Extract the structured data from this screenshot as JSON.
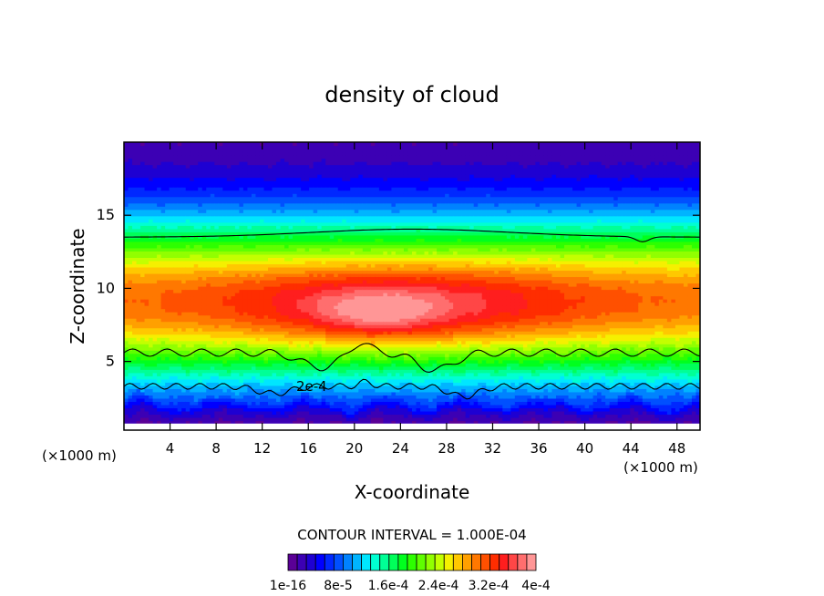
{
  "chart_data": {
    "type": "heatmap",
    "title": "density of cloud",
    "xlabel": "X-coordinate",
    "ylabel": "Z-coordinate",
    "x_unit_left": "(×1000 m)",
    "x_unit_right": "(×1000 m)",
    "xlim": [
      0,
      50
    ],
    "ylim": [
      0.3,
      20
    ],
    "x_ticks": [
      4,
      8,
      12,
      16,
      20,
      24,
      28,
      32,
      36,
      40,
      44,
      48
    ],
    "y_ticks": [
      5,
      10,
      15
    ],
    "contour_interval_text": "CONTOUR INTERVAL = 1.000E-04",
    "contour_line_label": "2e-4",
    "colorbar": {
      "colors": [
        "#5a0096",
        "#3c00b4",
        "#1e00d2",
        "#0000ff",
        "#0028ff",
        "#0050ff",
        "#0082ff",
        "#00b4ff",
        "#00e6ff",
        "#00ffd2",
        "#00ff96",
        "#00ff5a",
        "#00ff1e",
        "#2dff00",
        "#5fff00",
        "#91ff00",
        "#c3ff00",
        "#f5f000",
        "#ffc800",
        "#ffa000",
        "#ff7800",
        "#ff5000",
        "#ff2d00",
        "#ff1e1e",
        "#ff4646",
        "#ff6e6e",
        "#ff9696"
      ],
      "labels": [
        "1e-16",
        "8e-5",
        "1.6e-4",
        "2.4e-4",
        "3.2e-4",
        "4e-4"
      ]
    },
    "field_summary": {
      "max_value_approx": "4e-4",
      "max_location_x": [
        17,
        27
      ],
      "max_location_z": [
        6.5,
        9.7
      ]
    }
  },
  "colors": {
    "background": "#ffffff",
    "axis": "#000000"
  }
}
